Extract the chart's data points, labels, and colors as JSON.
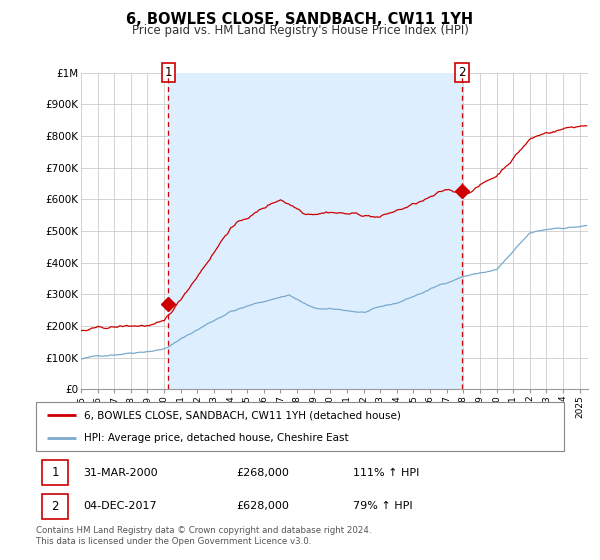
{
  "title": "6, BOWLES CLOSE, SANDBACH, CW11 1YH",
  "subtitle": "Price paid vs. HM Land Registry's House Price Index (HPI)",
  "legend_line1": "6, BOWLES CLOSE, SANDBACH, CW11 1YH (detached house)",
  "legend_line2": "HPI: Average price, detached house, Cheshire East",
  "annotation1_date": "31-MAR-2000",
  "annotation1_price": "£268,000",
  "annotation1_hpi": "111% ↑ HPI",
  "annotation2_date": "04-DEC-2017",
  "annotation2_price": "£628,000",
  "annotation2_hpi": "79% ↑ HPI",
  "footer": "Contains HM Land Registry data © Crown copyright and database right 2024.\nThis data is licensed under the Open Government Licence v3.0.",
  "vline1_x": 2000.25,
  "vline2_x": 2017.917,
  "marker1_x": 2000.25,
  "marker1_y": 268000,
  "marker2_x": 2017.917,
  "marker2_y": 628000,
  "xlim": [
    1995.0,
    2025.5
  ],
  "ylim": [
    0,
    1000000
  ],
  "ytick_labels": [
    "£0",
    "£100K",
    "£200K",
    "£300K",
    "£400K",
    "£500K",
    "£600K",
    "£700K",
    "£800K",
    "£900K",
    "£1M"
  ],
  "red_color": "#cc0000",
  "blue_color": "#7aaacc",
  "shade_color": "#ddeeff",
  "bg_color": "#ffffff",
  "grid_color": "#cccccc"
}
